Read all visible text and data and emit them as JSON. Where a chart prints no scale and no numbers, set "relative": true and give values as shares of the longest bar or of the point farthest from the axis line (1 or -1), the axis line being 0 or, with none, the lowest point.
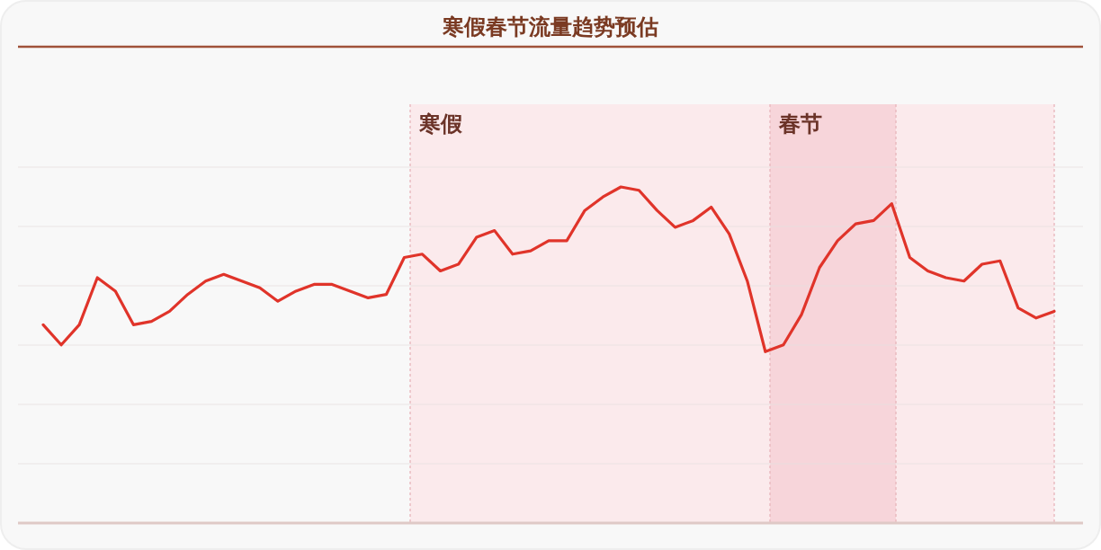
{
  "chart_data": {
    "type": "line",
    "title": "寒假春节流量趋势预估",
    "relative": true,
    "grid": true,
    "color": "#e0342a",
    "categories": [
      null,
      null,
      null,
      null,
      null,
      null,
      null,
      null,
      null,
      null,
      null,
      null,
      null,
      null,
      null,
      null,
      null,
      null,
      null,
      null,
      null,
      null,
      null,
      null,
      null,
      null,
      null,
      null,
      null,
      null,
      null,
      null,
      null,
      null,
      null,
      null,
      null,
      null,
      null,
      null,
      null,
      null,
      null,
      null,
      null,
      null,
      null,
      null,
      null,
      null,
      null,
      null,
      null,
      null,
      null,
      null,
      null
    ],
    "values": [
      0.59,
      0.53,
      0.59,
      0.73,
      0.69,
      0.59,
      0.6,
      0.63,
      0.68,
      0.72,
      0.74,
      0.72,
      0.7,
      0.66,
      0.69,
      0.71,
      0.71,
      0.69,
      0.67,
      0.68,
      0.79,
      0.8,
      0.75,
      0.77,
      0.85,
      0.87,
      0.8,
      0.81,
      0.84,
      0.84,
      0.93,
      0.97,
      1,
      0.99,
      0.93,
      0.88,
      0.9,
      0.94,
      0.86,
      0.72,
      0.51,
      0.53,
      0.62,
      0.76,
      0.84,
      0.89,
      0.9,
      0.95,
      0.79,
      0.75,
      0.73,
      0.72,
      0.77,
      0.78,
      0.64,
      0.61,
      0.63
    ],
    "annotations": [
      "寒假",
      "春节"
    ]
  }
}
